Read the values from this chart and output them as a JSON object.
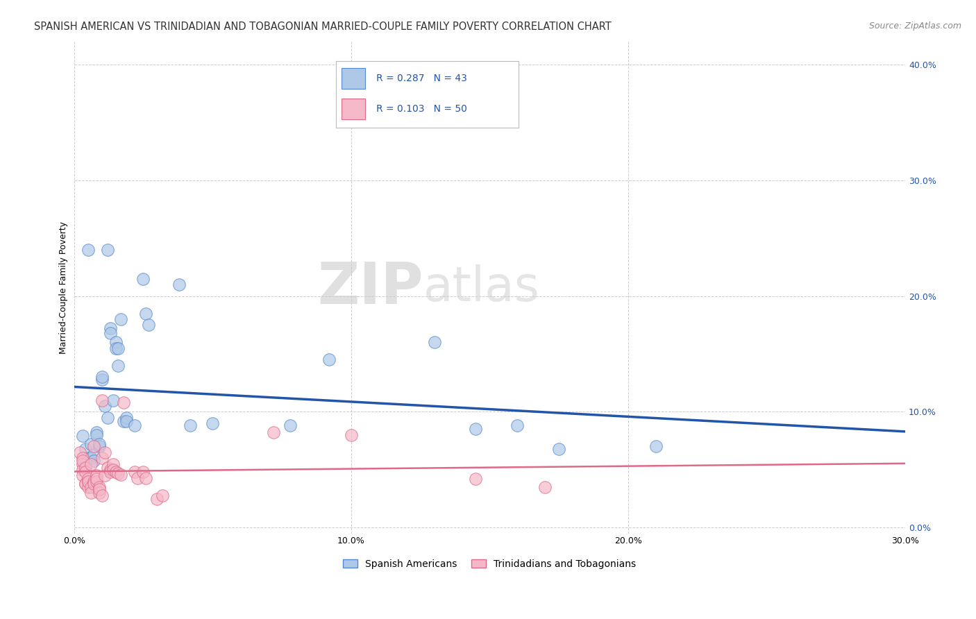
{
  "title": "SPANISH AMERICAN VS TRINIDADIAN AND TOBAGONIAN MARRIED-COUPLE FAMILY POVERTY CORRELATION CHART",
  "source": "Source: ZipAtlas.com",
  "ylabel_label": "Married-Couple Family Poverty",
  "xlim": [
    0.0,
    0.3
  ],
  "ylim": [
    -0.005,
    0.42
  ],
  "blue_R": 0.287,
  "blue_N": 43,
  "pink_R": 0.103,
  "pink_N": 50,
  "legend1_label": "Spanish Americans",
  "legend2_label": "Trinidadians and Tobagonians",
  "watermark_zip": "ZIP",
  "watermark_atlas": "atlas",
  "blue_color": "#aec8e8",
  "pink_color": "#f4b8c8",
  "blue_edge_color": "#5588cc",
  "pink_edge_color": "#e06888",
  "blue_line_color": "#2255aa",
  "pink_line_color": "#e06888",
  "blue_scatter": [
    [
      0.003,
      0.079
    ],
    [
      0.004,
      0.068
    ],
    [
      0.004,
      0.055
    ],
    [
      0.005,
      0.06
    ],
    [
      0.005,
      0.24
    ],
    [
      0.006,
      0.06
    ],
    [
      0.006,
      0.072
    ],
    [
      0.007,
      0.063
    ],
    [
      0.007,
      0.058
    ],
    [
      0.008,
      0.082
    ],
    [
      0.008,
      0.08
    ],
    [
      0.009,
      0.07
    ],
    [
      0.009,
      0.072
    ],
    [
      0.01,
      0.128
    ],
    [
      0.01,
      0.13
    ],
    [
      0.011,
      0.105
    ],
    [
      0.012,
      0.095
    ],
    [
      0.012,
      0.24
    ],
    [
      0.013,
      0.172
    ],
    [
      0.013,
      0.168
    ],
    [
      0.014,
      0.11
    ],
    [
      0.015,
      0.16
    ],
    [
      0.015,
      0.155
    ],
    [
      0.016,
      0.14
    ],
    [
      0.016,
      0.155
    ],
    [
      0.017,
      0.18
    ],
    [
      0.018,
      0.092
    ],
    [
      0.019,
      0.095
    ],
    [
      0.019,
      0.092
    ],
    [
      0.022,
      0.088
    ],
    [
      0.025,
      0.215
    ],
    [
      0.026,
      0.185
    ],
    [
      0.027,
      0.175
    ],
    [
      0.038,
      0.21
    ],
    [
      0.042,
      0.088
    ],
    [
      0.05,
      0.09
    ],
    [
      0.078,
      0.088
    ],
    [
      0.092,
      0.145
    ],
    [
      0.13,
      0.16
    ],
    [
      0.145,
      0.085
    ],
    [
      0.16,
      0.088
    ],
    [
      0.175,
      0.068
    ],
    [
      0.21,
      0.07
    ]
  ],
  "pink_scatter": [
    [
      0.002,
      0.065
    ],
    [
      0.003,
      0.06
    ],
    [
      0.003,
      0.055
    ],
    [
      0.003,
      0.05
    ],
    [
      0.003,
      0.058
    ],
    [
      0.003,
      0.045
    ],
    [
      0.004,
      0.052
    ],
    [
      0.004,
      0.048
    ],
    [
      0.004,
      0.038
    ],
    [
      0.004,
      0.038
    ],
    [
      0.005,
      0.04
    ],
    [
      0.005,
      0.042
    ],
    [
      0.005,
      0.035
    ],
    [
      0.005,
      0.04
    ],
    [
      0.006,
      0.035
    ],
    [
      0.006,
      0.03
    ],
    [
      0.006,
      0.055
    ],
    [
      0.007,
      0.04
    ],
    [
      0.007,
      0.038
    ],
    [
      0.007,
      0.07
    ],
    [
      0.008,
      0.045
    ],
    [
      0.008,
      0.04
    ],
    [
      0.008,
      0.042
    ],
    [
      0.009,
      0.035
    ],
    [
      0.009,
      0.03
    ],
    [
      0.009,
      0.033
    ],
    [
      0.01,
      0.028
    ],
    [
      0.01,
      0.11
    ],
    [
      0.01,
      0.06
    ],
    [
      0.011,
      0.045
    ],
    [
      0.011,
      0.065
    ],
    [
      0.012,
      0.052
    ],
    [
      0.013,
      0.05
    ],
    [
      0.013,
      0.048
    ],
    [
      0.014,
      0.055
    ],
    [
      0.014,
      0.05
    ],
    [
      0.015,
      0.048
    ],
    [
      0.016,
      0.047
    ],
    [
      0.017,
      0.046
    ],
    [
      0.018,
      0.108
    ],
    [
      0.022,
      0.048
    ],
    [
      0.023,
      0.043
    ],
    [
      0.025,
      0.048
    ],
    [
      0.026,
      0.043
    ],
    [
      0.03,
      0.025
    ],
    [
      0.032,
      0.028
    ],
    [
      0.072,
      0.082
    ],
    [
      0.1,
      0.08
    ],
    [
      0.145,
      0.042
    ],
    [
      0.17,
      0.035
    ]
  ],
  "grid_color": "#cccccc",
  "background_color": "#ffffff",
  "title_fontsize": 10.5,
  "axis_label_fontsize": 9,
  "tick_fontsize": 9,
  "source_fontsize": 9
}
